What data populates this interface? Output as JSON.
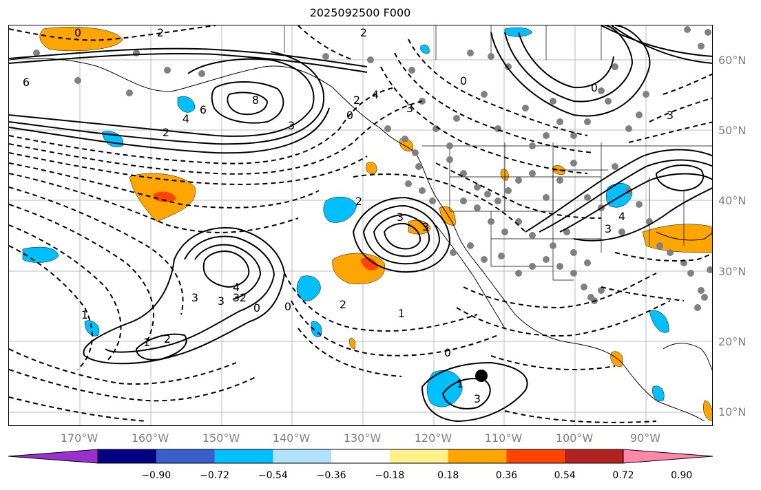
{
  "title": "2025092500 F000",
  "latitude_labels": [
    "60°N",
    "50°N",
    "40°N",
    "30°N",
    "20°N",
    "10°N"
  ],
  "longitude_labels": [
    "170°W",
    "160°W",
    "150°W",
    "140°W",
    "130°W",
    "120°W",
    "110°W",
    "100°W",
    "90°W"
  ],
  "contour_labels": [
    "2",
    "2",
    "0",
    "6",
    "8",
    "6",
    "4",
    "3",
    "4",
    "0",
    "2",
    "3",
    "3",
    "0",
    "0",
    "2",
    "2",
    "3",
    "3",
    "3",
    "4",
    "3",
    "1",
    "3",
    "2",
    "2",
    "1",
    "0",
    "0",
    "2",
    "1",
    "0",
    "1",
    "3",
    "3",
    "4"
  ],
  "colorbar": {
    "ticks": [
      "−0.90",
      "−0.72",
      "−0.54",
      "−0.36",
      "−0.18",
      "0.18",
      "0.36",
      "0.54",
      "0.72",
      "0.90"
    ],
    "colors": [
      "#9932cc",
      "#000080",
      "#3a5fcd",
      "#00bfff",
      "#b0e2ff",
      "#ffffff",
      "#fff08c",
      "#ffa500",
      "#ff4500",
      "#b22222",
      "#ff88aa"
    ]
  },
  "map_features": {
    "positive_shading": "#ffa500",
    "strong_positive_shading": "#ff4500",
    "negative_shading": "#00bfff",
    "station_dots": "#808080",
    "grid_color": "#bbbbbb"
  }
}
